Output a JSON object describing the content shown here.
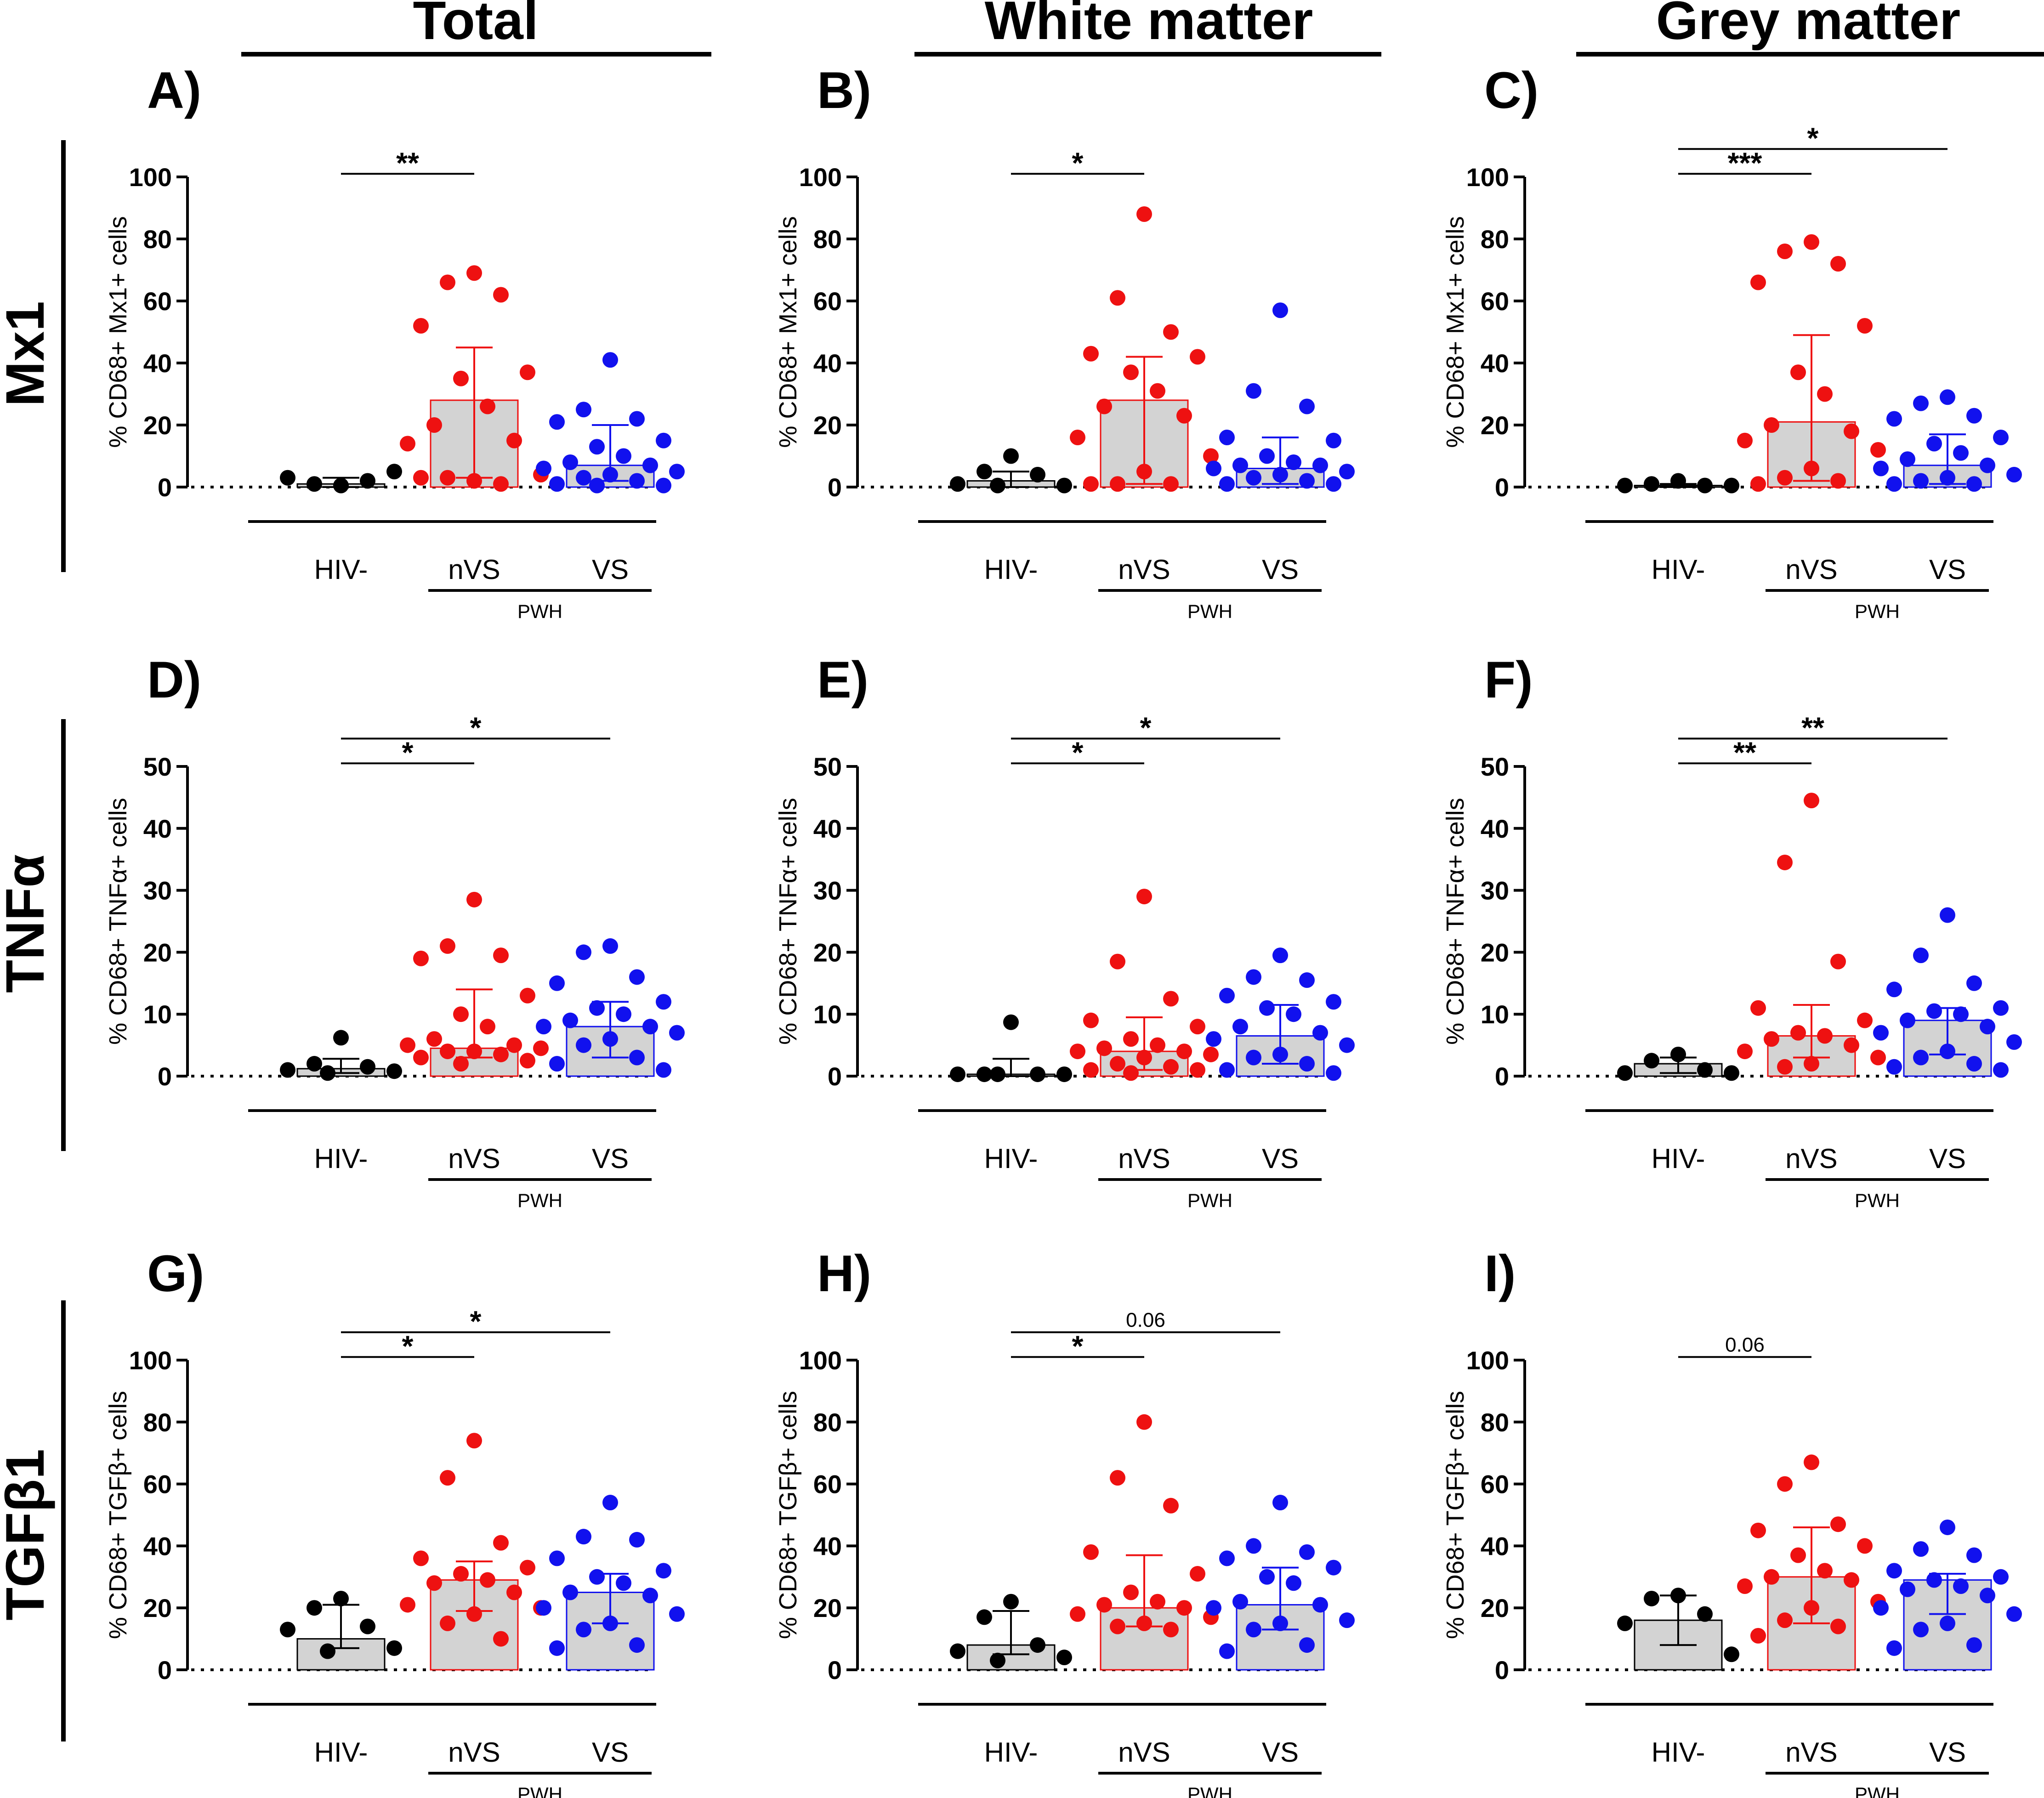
{
  "columns": [
    {
      "title": "Total"
    },
    {
      "title": "White matter"
    },
    {
      "title": "Grey matter"
    }
  ],
  "rows": [
    {
      "title": "Mx1"
    },
    {
      "title": "TNFα"
    },
    {
      "title": "TGFβ1"
    }
  ],
  "colors": {
    "HIV-": "#000000",
    "nVS": "#ee1111",
    "VS": "#1111ee",
    "bar_fill": "#d3d3d3"
  },
  "chart_data": [
    {
      "id": "A",
      "panel_label": "A)",
      "type": "scatter-bar",
      "ylabel": "% CD68+ Mx1+ cells",
      "ylim": [
        0,
        100
      ],
      "yticks": [
        0,
        20,
        40,
        60,
        80,
        100
      ],
      "categories": [
        "HIV-",
        "nVS",
        "VS"
      ],
      "group_label": "PWH",
      "series": [
        {
          "name": "HIV-",
          "median": 1,
          "err_low": 0,
          "err_high": 3,
          "points": [
            0.5,
            1,
            2,
            3,
            5
          ]
        },
        {
          "name": "nVS",
          "median": 28,
          "err_low": 3,
          "err_high": 45,
          "points": [
            69,
            66,
            62,
            52,
            37,
            35,
            26,
            20,
            15,
            14,
            4,
            2,
            3,
            1,
            3
          ]
        },
        {
          "name": "VS",
          "median": 7,
          "err_low": 2,
          "err_high": 20,
          "points": [
            41,
            25,
            22,
            21,
            15,
            13,
            10,
            8,
            7,
            6,
            5,
            4,
            3,
            2,
            1,
            0.5,
            0.5
          ]
        }
      ],
      "sig": [
        {
          "from": "HIV-",
          "to": "nVS",
          "label": "**",
          "y": 101
        }
      ]
    },
    {
      "id": "B",
      "panel_label": "B)",
      "type": "scatter-bar",
      "ylabel": "% CD68+ Mx1+ cells",
      "ylim": [
        0,
        100
      ],
      "yticks": [
        0,
        20,
        40,
        60,
        80,
        100
      ],
      "categories": [
        "HIV-",
        "nVS",
        "VS"
      ],
      "group_label": "PWH",
      "series": [
        {
          "name": "HIV-",
          "median": 2,
          "err_low": 0,
          "err_high": 5,
          "points": [
            10,
            5,
            4,
            1,
            0.5,
            0.5
          ]
        },
        {
          "name": "nVS",
          "median": 28,
          "err_low": 1,
          "err_high": 42,
          "points": [
            88,
            61,
            50,
            43,
            42,
            37,
            31,
            26,
            23,
            16,
            10,
            5,
            1,
            1,
            1
          ]
        },
        {
          "name": "VS",
          "median": 6,
          "err_low": 1,
          "err_high": 16,
          "points": [
            57,
            31,
            26,
            16,
            15,
            10,
            8,
            7,
            7,
            6,
            5,
            4,
            3,
            2,
            1,
            1
          ]
        }
      ],
      "sig": [
        {
          "from": "HIV-",
          "to": "nVS",
          "label": "*",
          "y": 101
        }
      ]
    },
    {
      "id": "C",
      "panel_label": "C)",
      "type": "scatter-bar",
      "ylabel": "% CD68+ Mx1+ cells",
      "ylim": [
        0,
        100
      ],
      "yticks": [
        0,
        20,
        40,
        60,
        80,
        100
      ],
      "categories": [
        "HIV-",
        "nVS",
        "VS"
      ],
      "group_label": "PWH",
      "series": [
        {
          "name": "HIV-",
          "median": 0.5,
          "err_low": 0,
          "err_high": 1,
          "points": [
            2,
            1,
            0.5,
            0.5,
            0.5
          ]
        },
        {
          "name": "nVS",
          "median": 21,
          "err_low": 2,
          "err_high": 49,
          "points": [
            79,
            76,
            72,
            66,
            52,
            37,
            30,
            20,
            18,
            15,
            12,
            6,
            3,
            2,
            1
          ]
        },
        {
          "name": "VS",
          "median": 7,
          "err_low": 1,
          "err_high": 17,
          "points": [
            29,
            27,
            23,
            22,
            16,
            14,
            11,
            9,
            7,
            6,
            4,
            3,
            2,
            1,
            1
          ]
        }
      ],
      "sig": [
        {
          "from": "HIV-",
          "to": "nVS",
          "label": "***",
          "y": 101
        },
        {
          "from": "HIV-",
          "to": "VS",
          "label": "*",
          "y": 109
        }
      ]
    },
    {
      "id": "D",
      "panel_label": "D)",
      "type": "scatter-bar",
      "ylabel": "% CD68+ TNFα+ cells",
      "ylim": [
        0,
        50
      ],
      "yticks": [
        0,
        10,
        20,
        30,
        40,
        50
      ],
      "categories": [
        "HIV-",
        "nVS",
        "VS"
      ],
      "group_label": "PWH",
      "series": [
        {
          "name": "HIV-",
          "median": 1.2,
          "err_low": 0.5,
          "err_high": 2.8,
          "points": [
            6.2,
            2,
            1.5,
            1,
            0.8,
            0.5
          ]
        },
        {
          "name": "nVS",
          "median": 4.5,
          "err_low": 3,
          "err_high": 14,
          "points": [
            28.5,
            21,
            19.5,
            19,
            13,
            10,
            8,
            6,
            5,
            5,
            4.5,
            4,
            4,
            3.5,
            3,
            2.5,
            2
          ]
        },
        {
          "name": "VS",
          "median": 8,
          "err_low": 3,
          "err_high": 12,
          "points": [
            21,
            20,
            16,
            15,
            12,
            11,
            10,
            9,
            8,
            8,
            7,
            6,
            5,
            3,
            2,
            1
          ]
        }
      ],
      "sig": [
        {
          "from": "HIV-",
          "to": "nVS",
          "label": "*",
          "y": 50.5
        },
        {
          "from": "HIV-",
          "to": "VS",
          "label": "*",
          "y": 54.5
        }
      ]
    },
    {
      "id": "E",
      "panel_label": "E)",
      "type": "scatter-bar",
      "ylabel": "% CD68+ TNFα+ cells",
      "ylim": [
        0,
        50
      ],
      "yticks": [
        0,
        10,
        20,
        30,
        40,
        50
      ],
      "categories": [
        "HIV-",
        "nVS",
        "VS"
      ],
      "group_label": "PWH",
      "series": [
        {
          "name": "HIV-",
          "median": 0.3,
          "err_low": 0,
          "err_high": 2.8,
          "points": [
            8.7,
            0.3,
            0.3,
            0.3,
            0.3,
            0.3
          ]
        },
        {
          "name": "nVS",
          "median": 4,
          "err_low": 1,
          "err_high": 9.5,
          "points": [
            29,
            18.5,
            12.5,
            9,
            8,
            6,
            5,
            4.5,
            4,
            4,
            3.5,
            3,
            2,
            1.5,
            1,
            1,
            0.5
          ]
        },
        {
          "name": "VS",
          "median": 6.5,
          "err_low": 2,
          "err_high": 11.5,
          "points": [
            19.5,
            16,
            15.5,
            13,
            12,
            11,
            10,
            8,
            7,
            6,
            5,
            3.5,
            3,
            2,
            1,
            0.5
          ]
        }
      ],
      "sig": [
        {
          "from": "HIV-",
          "to": "nVS",
          "label": "*",
          "y": 50.5
        },
        {
          "from": "HIV-",
          "to": "VS",
          "label": "*",
          "y": 54.5
        }
      ]
    },
    {
      "id": "F",
      "panel_label": "F)",
      "type": "scatter-bar",
      "ylabel": "% CD68+ TNFα+ cells",
      "ylim": [
        0,
        50
      ],
      "yticks": [
        0,
        10,
        20,
        30,
        40,
        50
      ],
      "categories": [
        "HIV-",
        "nVS",
        "VS"
      ],
      "group_label": "PWH",
      "series": [
        {
          "name": "HIV-",
          "median": 2,
          "err_low": 0.5,
          "err_high": 3,
          "points": [
            3.5,
            2.5,
            1,
            0.5,
            0.5
          ]
        },
        {
          "name": "nVS",
          "median": 6.5,
          "err_low": 3,
          "err_high": 11.5,
          "points": [
            44.5,
            34.5,
            18.5,
            11,
            9,
            7,
            6.5,
            6,
            5,
            4,
            3,
            2,
            1.5
          ]
        },
        {
          "name": "VS",
          "median": 9,
          "err_low": 3.5,
          "err_high": 11,
          "points": [
            26,
            19.5,
            15,
            14,
            11,
            10.5,
            10,
            9,
            8,
            7,
            5.5,
            4,
            3,
            2,
            1.5,
            1
          ]
        }
      ],
      "sig": [
        {
          "from": "HIV-",
          "to": "nVS",
          "label": "**",
          "y": 50.5
        },
        {
          "from": "HIV-",
          "to": "VS",
          "label": "**",
          "y": 54.5
        }
      ]
    },
    {
      "id": "G",
      "panel_label": "G)",
      "type": "scatter-bar",
      "ylabel": "% CD68+ TGFβ+ cells",
      "ylim": [
        0,
        100
      ],
      "yticks": [
        0,
        20,
        40,
        60,
        80,
        100
      ],
      "categories": [
        "HIV-",
        "nVS",
        "VS"
      ],
      "group_label": "PWH",
      "series": [
        {
          "name": "HIV-",
          "median": 10,
          "err_low": 7,
          "err_high": 21,
          "points": [
            23,
            20,
            14,
            13,
            7,
            6
          ]
        },
        {
          "name": "nVS",
          "median": 29,
          "err_low": 19,
          "err_high": 35,
          "points": [
            74,
            62,
            41,
            36,
            33,
            31,
            29,
            28,
            25,
            21,
            20,
            18,
            15,
            10
          ]
        },
        {
          "name": "VS",
          "median": 25,
          "err_low": 15,
          "err_high": 31,
          "points": [
            54,
            43,
            42,
            36,
            32,
            30,
            28,
            25,
            24,
            20,
            18,
            15,
            13,
            8,
            7
          ]
        }
      ],
      "sig": [
        {
          "from": "HIV-",
          "to": "nVS",
          "label": "*",
          "y": 101
        },
        {
          "from": "HIV-",
          "to": "VS",
          "label": "*",
          "y": 109
        }
      ]
    },
    {
      "id": "H",
      "panel_label": "H)",
      "type": "scatter-bar",
      "ylabel": "% CD68+ TGFβ+ cells",
      "ylim": [
        0,
        100
      ],
      "yticks": [
        0,
        20,
        40,
        60,
        80,
        100
      ],
      "categories": [
        "HIV-",
        "nVS",
        "VS"
      ],
      "group_label": "PWH",
      "series": [
        {
          "name": "HIV-",
          "median": 8,
          "err_low": 5,
          "err_high": 19,
          "points": [
            22,
            17,
            8,
            6,
            4,
            3
          ]
        },
        {
          "name": "nVS",
          "median": 20,
          "err_low": 14,
          "err_high": 37,
          "points": [
            80,
            62,
            53,
            38,
            31,
            25,
            22,
            21,
            20,
            18,
            17,
            15,
            14,
            13
          ]
        },
        {
          "name": "VS",
          "median": 21,
          "err_low": 13,
          "err_high": 33,
          "points": [
            54,
            40,
            38,
            36,
            33,
            30,
            28,
            22,
            21,
            20,
            16,
            15,
            13,
            8,
            6
          ]
        }
      ],
      "sig": [
        {
          "from": "HIV-",
          "to": "nVS",
          "label": "*",
          "y": 101
        },
        {
          "from": "HIV-",
          "to": "VS",
          "label": "0.06",
          "y": 109
        }
      ]
    },
    {
      "id": "I",
      "panel_label": "I)",
      "type": "scatter-bar",
      "ylabel": "% CD68+ TGFβ+ cells",
      "ylim": [
        0,
        100
      ],
      "yticks": [
        0,
        20,
        40,
        60,
        80,
        100
      ],
      "categories": [
        "HIV-",
        "nVS",
        "VS"
      ],
      "group_label": "PWH",
      "series": [
        {
          "name": "HIV-",
          "median": 16,
          "err_low": 8,
          "err_high": 24,
          "points": [
            24,
            23,
            18,
            15,
            5
          ]
        },
        {
          "name": "nVS",
          "median": 30,
          "err_low": 15,
          "err_high": 46,
          "points": [
            67,
            60,
            47,
            45,
            40,
            37,
            32,
            30,
            29,
            27,
            22,
            20,
            16,
            14,
            11
          ]
        },
        {
          "name": "VS",
          "median": 29,
          "err_low": 18,
          "err_high": 31,
          "points": [
            46,
            39,
            37,
            32,
            30,
            29,
            27,
            26,
            24,
            20,
            18,
            15,
            13,
            8,
            7
          ]
        }
      ],
      "sig": [
        {
          "from": "HIV-",
          "to": "nVS",
          "label": "0.06",
          "y": 101
        }
      ]
    }
  ]
}
